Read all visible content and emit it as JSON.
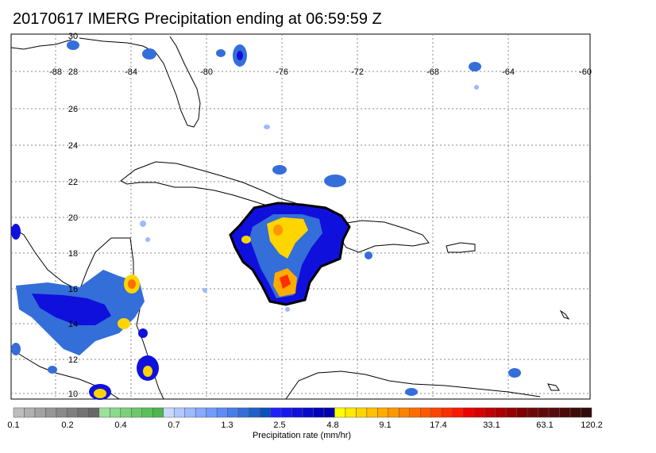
{
  "title": "20170617 IMERG Precipitation ending at 06:59:59 Z",
  "lon_labels": [
    "-88",
    "-84",
    "-80",
    "-76",
    "-72",
    "-68",
    "-64",
    "-60"
  ],
  "lat_labels": [
    "30",
    "28",
    "26",
    "24",
    "22",
    "20",
    "18",
    "16",
    "14",
    "12",
    "10"
  ],
  "colorbar": {
    "title": "Precipitation rate (mm/hr)",
    "labels": [
      "0.1",
      "0.2",
      "0.4",
      "0.7",
      "1.3",
      "2.5",
      "4.8",
      "9.1",
      "17.4",
      "33.1",
      "63.1",
      "120.2"
    ],
    "colors": [
      "#bdbdbd",
      "#b0b0b0",
      "#a3a3a3",
      "#969696",
      "#8a8a8a",
      "#7f7f7f",
      "#737373",
      "#686868",
      "#9be29b",
      "#8bd98b",
      "#7bd07b",
      "#6bc86b",
      "#5cbf5c",
      "#4db74d",
      "#c8d8ff",
      "#b3c8ff",
      "#9db9ff",
      "#88aaff",
      "#739bff",
      "#5e8cf7",
      "#497de8",
      "#346ed9",
      "#1f5fca",
      "#0a50bb",
      "#2020ff",
      "#1818ee",
      "#1010dd",
      "#0808cc",
      "#0000bb",
      "#0000aa",
      "#ffff00",
      "#ffea00",
      "#ffd500",
      "#ffc000",
      "#ffab00",
      "#ff9600",
      "#ff8200",
      "#ff6d00",
      "#ff5800",
      "#ff4300",
      "#ff2e00",
      "#ff1900",
      "#ee0000",
      "#d80000",
      "#c20000",
      "#ac0000",
      "#960000",
      "#800000",
      "#6e0a0a",
      "#620a0a",
      "#560a0a",
      "#4a0a0a",
      "#3e0a0a",
      "#320a0a"
    ]
  }
}
